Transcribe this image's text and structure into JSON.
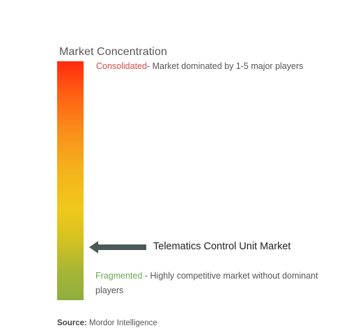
{
  "title": "Market Concentration",
  "consolidated": {
    "keyword": "Consolidated",
    "description": "- Market dominated by 1-5 major players"
  },
  "marker": {
    "label": "Telematics Control Unit Market",
    "level": 0.22
  },
  "fragmented": {
    "keyword": "Fragmented",
    "description": " - Highly competitive market without dominant players"
  },
  "source": {
    "label": "Source:",
    "value": "Mordor Intelligence"
  },
  "colors": {
    "top": "#ff2a0e",
    "middle": "#f0c81a",
    "bottom": "#8fae3f",
    "arrow": "#4b5a59",
    "consolidated_text": "#d04b45",
    "fragmented_text": "#6aa84f"
  }
}
